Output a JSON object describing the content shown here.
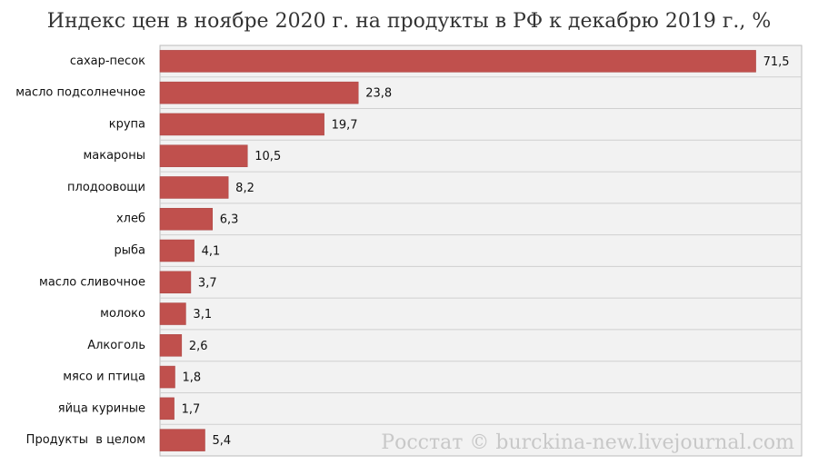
{
  "chart_data": {
    "type": "hbar",
    "title": "Индекс цен в ноябре 2020 г. на продукты в РФ к декабрю 2019 г., %",
    "categories": [
      "сахар-песок",
      "масло подсолнечное",
      "крупа",
      "макароны",
      "плодоовощи",
      "хлеб",
      "рыба",
      "масло сливочное",
      "молоко",
      "Алкоголь",
      "мясо и птица",
      "яйца куриные",
      "Продукты  в целом"
    ],
    "values": [
      71.5,
      23.8,
      19.7,
      10.5,
      8.2,
      6.3,
      4.1,
      3.7,
      3.1,
      2.6,
      1.8,
      1.7,
      5.4
    ],
    "value_labels": [
      "71,5",
      "23,8",
      "19,7",
      "10,5",
      "8,2",
      "6,3",
      "4,1",
      "3,7",
      "3,1",
      "2,6",
      "1,8",
      "1,7",
      "5,4"
    ],
    "color": "#c0504d",
    "xlim": [
      0,
      77
    ],
    "grid": true,
    "watermark": "Росстат © burckina-new.livejournal.com"
  }
}
